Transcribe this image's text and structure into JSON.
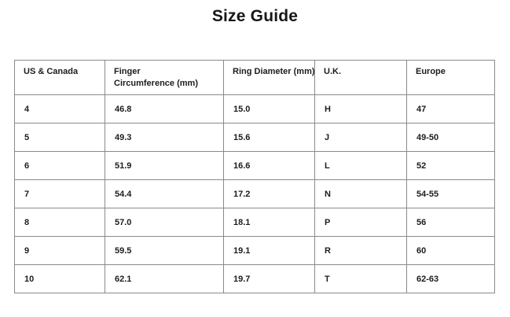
{
  "page": {
    "title": "Size Guide"
  },
  "table": {
    "columns": [
      "US & Canada",
      "Finger\nCircumference (mm)",
      "Ring Diameter (mm)",
      "U.K.",
      "Europe"
    ],
    "rows": [
      [
        "4",
        "46.8",
        "15.0",
        "H",
        "47"
      ],
      [
        "5",
        "49.3",
        "15.6",
        "J",
        "49-50"
      ],
      [
        "6",
        "51.9",
        "16.6",
        "L",
        "52"
      ],
      [
        "7",
        "54.4",
        "17.2",
        "N",
        "54-55"
      ],
      [
        "8",
        "57.0",
        "18.1",
        "P",
        "56"
      ],
      [
        "9",
        "59.5",
        "19.1",
        "R",
        "60"
      ],
      [
        "10",
        "62.1",
        "19.7",
        "T",
        "62-63"
      ]
    ]
  },
  "colors": {
    "background": "#ffffff",
    "text": "#1c1c1c",
    "border": "#8a8a8a"
  }
}
